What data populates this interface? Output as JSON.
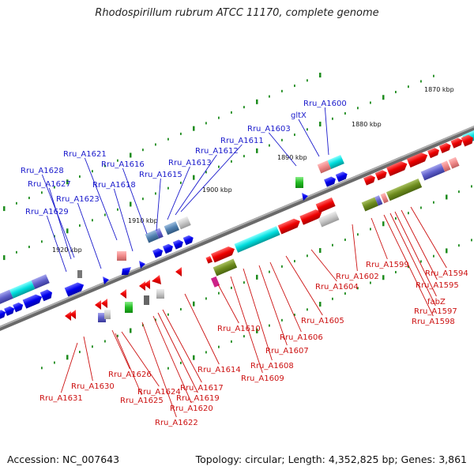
{
  "title": "Rhodospirillum rubrum ATCC 11170, complete genome",
  "accession": "Accession: NC_007643",
  "summary": "Topology: circular; Length: 4,352,825 bp; Genes: 3,861",
  "colors": {
    "top_labels": "#1a1acc",
    "bottom_labels": "#cc1111",
    "backbone": "#8c8c8c",
    "ticks": "#1e8c1e"
  },
  "kbp_marks": [
    "1870 kbp",
    "1880 kbp",
    "1890 kbp",
    "1900 kbp",
    "1910 kbp",
    "1920 kbp"
  ],
  "top_labels": [
    "Rru_A1600",
    "gltX",
    "Rru_A1603",
    "Rru_A1611",
    "Rru_A1612",
    "Rru_A1613",
    "Rru_A1621",
    "Rru_A1616",
    "Rru_A1615",
    "Rru_A1628",
    "Rru_A1618",
    "Rru_A1627",
    "Rru_A1623",
    "Rru_A1629"
  ],
  "bottom_labels": [
    "Rru_A1594",
    "Rru_A1595",
    "fabZ",
    "Rru_A1597",
    "Rru_A1598",
    "Rru_A1599",
    "Rru_A1602",
    "Rru_A1604",
    "Rru_A1605",
    "Rru_A1606",
    "Rru_A1607",
    "Rru_A1608",
    "Rru_A1609",
    "Rru_A1610",
    "Rru_A1614",
    "Rru_A1617",
    "Rru_A1619",
    "Rru_A1620",
    "Rru_A1622",
    "Rru_A1624",
    "Rru_A1625",
    "Rru_A1626",
    "Rru_A1630",
    "Rru_A1631"
  ]
}
